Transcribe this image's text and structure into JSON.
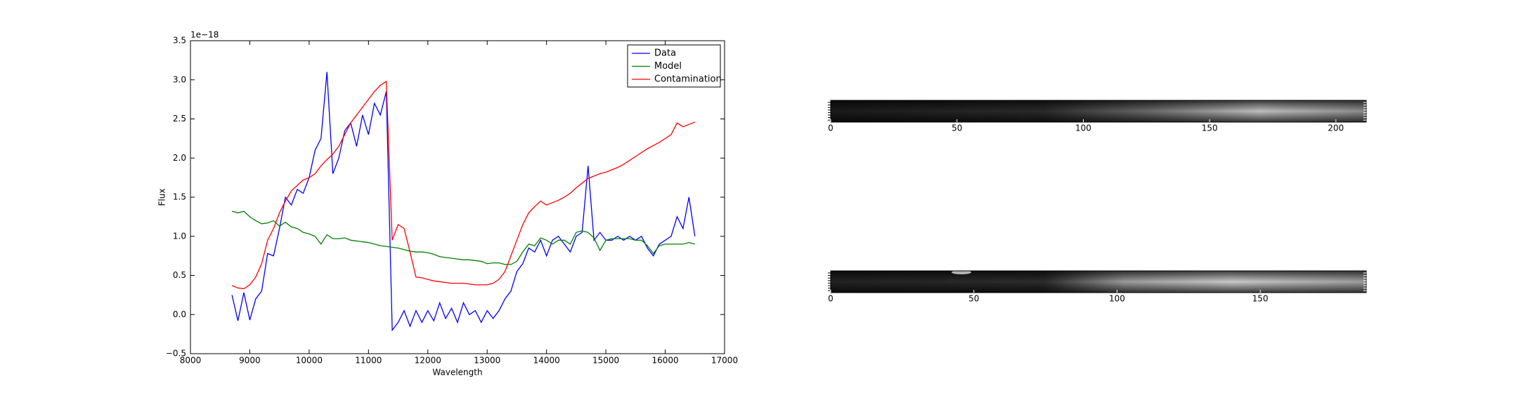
{
  "chart_data": [
    {
      "type": "line",
      "xlabel": "Wavelength",
      "ylabel": "Flux",
      "y_offset_label": "1e−18",
      "x": [
        8700,
        8800,
        8900,
        9000,
        9100,
        9200,
        9300,
        9400,
        9500,
        9600,
        9700,
        9800,
        9900,
        10000,
        10100,
        10200,
        10300,
        10400,
        10500,
        10600,
        10700,
        10800,
        10900,
        11000,
        11100,
        11200,
        11300,
        11400,
        11500,
        11600,
        11700,
        11800,
        11900,
        12000,
        12100,
        12200,
        12300,
        12400,
        12500,
        12600,
        12700,
        12800,
        12900,
        13000,
        13100,
        13200,
        13300,
        13400,
        13500,
        13600,
        13700,
        13800,
        13900,
        14000,
        14100,
        14200,
        14300,
        14400,
        14500,
        14600,
        14700,
        14800,
        14900,
        15000,
        15100,
        15200,
        15300,
        15400,
        15500,
        15600,
        15700,
        15800,
        15900,
        16000,
        16100,
        16200,
        16300,
        16400,
        16500
      ],
      "series": [
        {
          "name": "Data",
          "color": "#0000ff",
          "values": [
            0.25,
            -0.08,
            0.28,
            -0.07,
            0.2,
            0.3,
            0.78,
            0.75,
            1.1,
            1.5,
            1.4,
            1.6,
            1.55,
            1.75,
            2.1,
            2.25,
            3.1,
            1.8,
            2.0,
            2.35,
            2.45,
            2.15,
            2.55,
            2.3,
            2.7,
            2.55,
            2.85,
            -0.2,
            -0.1,
            0.05,
            -0.15,
            0.05,
            -0.1,
            0.05,
            -0.08,
            0.15,
            -0.05,
            0.08,
            -0.1,
            0.15,
            0.0,
            0.05,
            -0.1,
            0.05,
            -0.05,
            0.05,
            0.2,
            0.3,
            0.55,
            0.65,
            0.85,
            0.8,
            0.95,
            0.75,
            0.95,
            1.0,
            0.9,
            0.8,
            1.0,
            1.05,
            1.9,
            0.95,
            1.05,
            0.95,
            0.95,
            1.0,
            0.95,
            1.0,
            0.95,
            1.0,
            0.85,
            0.75,
            0.9,
            0.95,
            1.0,
            1.25,
            1.1,
            1.5,
            1.0
          ]
        },
        {
          "name": "Model",
          "color": "#008000",
          "values": [
            1.32,
            1.3,
            1.32,
            1.25,
            1.2,
            1.16,
            1.17,
            1.2,
            1.13,
            1.18,
            1.12,
            1.1,
            1.05,
            1.03,
            1.0,
            0.9,
            1.02,
            0.97,
            0.97,
            0.98,
            0.95,
            0.94,
            0.93,
            0.92,
            0.9,
            0.88,
            0.87,
            0.86,
            0.85,
            0.83,
            0.81,
            0.8,
            0.8,
            0.79,
            0.77,
            0.74,
            0.73,
            0.72,
            0.71,
            0.7,
            0.7,
            0.69,
            0.68,
            0.65,
            0.66,
            0.66,
            0.64,
            0.64,
            0.68,
            0.8,
            0.9,
            0.88,
            0.98,
            0.95,
            0.9,
            0.95,
            0.95,
            0.9,
            1.05,
            1.07,
            1.05,
            0.98,
            0.82,
            0.95,
            0.97,
            0.97,
            0.97,
            0.97,
            0.95,
            0.95,
            0.88,
            0.78,
            0.88,
            0.9,
            0.9,
            0.9,
            0.9,
            0.92,
            0.9
          ]
        },
        {
          "name": "Contamination",
          "color": "#ff0000",
          "values": [
            0.37,
            0.34,
            0.33,
            0.38,
            0.48,
            0.65,
            0.95,
            1.1,
            1.3,
            1.45,
            1.58,
            1.65,
            1.72,
            1.75,
            1.8,
            1.9,
            1.98,
            2.05,
            2.15,
            2.3,
            2.45,
            2.55,
            2.65,
            2.75,
            2.85,
            2.93,
            2.98,
            0.95,
            1.15,
            1.1,
            0.8,
            0.48,
            0.47,
            0.45,
            0.43,
            0.42,
            0.41,
            0.4,
            0.4,
            0.4,
            0.39,
            0.38,
            0.38,
            0.38,
            0.4,
            0.45,
            0.55,
            0.75,
            0.95,
            1.15,
            1.3,
            1.38,
            1.45,
            1.4,
            1.43,
            1.46,
            1.5,
            1.55,
            1.62,
            1.68,
            1.74,
            1.77,
            1.8,
            1.82,
            1.85,
            1.88,
            1.92,
            1.97,
            2.02,
            2.07,
            2.12,
            2.16,
            2.2,
            2.25,
            2.3,
            2.45,
            2.4,
            2.43,
            2.46
          ]
        }
      ],
      "xlim": [
        8000,
        17000
      ],
      "xticks": [
        8000,
        9000,
        10000,
        11000,
        12000,
        13000,
        14000,
        15000,
        16000,
        17000
      ],
      "ylim": [
        -0.5,
        3.5
      ],
      "yticks": [
        {
          "value": -0.5,
          "label": "−0.5"
        },
        {
          "value": 0,
          "label": "0.0"
        },
        0.5,
        {
          "value": 1,
          "label": "1.0"
        },
        1.5,
        {
          "value": 2,
          "label": "2.0"
        },
        2.5,
        {
          "value": 3,
          "label": "3.0"
        },
        3.5
      ],
      "legend": "upper right"
    },
    {
      "type": "image",
      "xlim": [
        0,
        212
      ],
      "xticks": [
        0,
        50,
        100,
        150,
        200
      ]
    },
    {
      "type": "image",
      "xlim": [
        0,
        187
      ],
      "xticks": [
        0,
        50,
        100,
        150
      ]
    }
  ]
}
